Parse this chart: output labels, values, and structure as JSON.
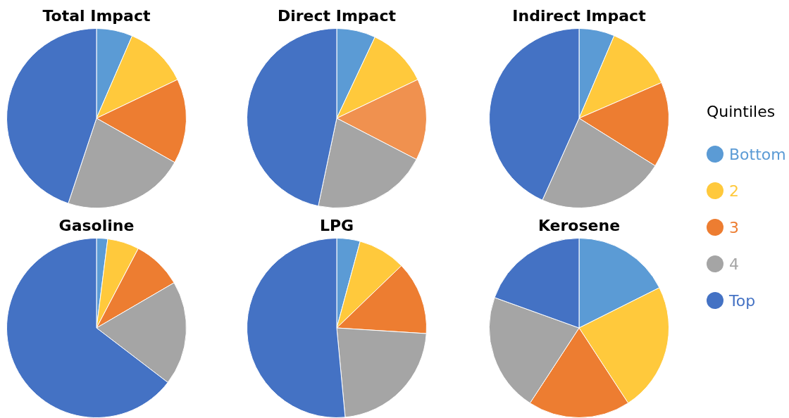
{
  "chart_data": [
    {
      "type": "pie",
      "title": "Total Impact",
      "categories": [
        "Bottom",
        "2",
        "3",
        "4",
        "Top"
      ],
      "values": [
        6.5,
        11.4,
        15.3,
        21.9,
        44.9
      ],
      "colors": [
        "#5b9bd5",
        "#ffc93c",
        "#ed7d31",
        "#a5a5a5",
        "#4472c4"
      ],
      "legend": "right",
      "legend_title": "Quintiles"
    },
    {
      "type": "pie",
      "title": "Direct Impact",
      "categories": [
        null,
        null,
        null,
        null,
        null
      ],
      "values": [
        7,
        10.9,
        14.7,
        20.7,
        46.7
      ],
      "colors": [
        "#5b9bd5",
        "#ffc93c",
        "#f0914f",
        "#a5a5a5",
        "#4472c4"
      ]
    },
    {
      "type": "pie",
      "title": "Indirect Impact",
      "categories": [
        null,
        null,
        null,
        null,
        null
      ],
      "values": [
        6.4,
        12.1,
        15.4,
        22.8,
        43.3
      ],
      "colors": [
        "#5b9bd5",
        "#ffc93c",
        "#ed7d31",
        "#a5a5a5",
        "#4472c4"
      ]
    },
    {
      "type": "pie",
      "title": "Gasoline",
      "categories": [
        null,
        null,
        null,
        null,
        null
      ],
      "values": [
        2,
        5.7,
        8.9,
        18.8,
        64.6
      ],
      "colors": [
        "#5b9bd5",
        "#ffc93c",
        "#ed7d31",
        "#a5a5a5",
        "#4472c4"
      ]
    },
    {
      "type": "pie",
      "title": "LPG",
      "categories": [
        null,
        null,
        null,
        null,
        null
      ],
      "values": [
        4.2,
        8.6,
        13.2,
        22.5,
        51.5
      ],
      "colors": [
        "#5b9bd5",
        "#ffc93c",
        "#ed7d31",
        "#a5a5a5",
        "#4472c4"
      ]
    },
    {
      "type": "pie",
      "title": "Kerosene",
      "categories": [
        null,
        null,
        null,
        null,
        null
      ],
      "values": [
        17.6,
        23.2,
        18.4,
        21.3,
        19.5
      ],
      "colors": [
        "#5b9bd5",
        "#ffc93c",
        "#ed7d31",
        "#a5a5a5",
        "#4472c4"
      ]
    }
  ]
}
